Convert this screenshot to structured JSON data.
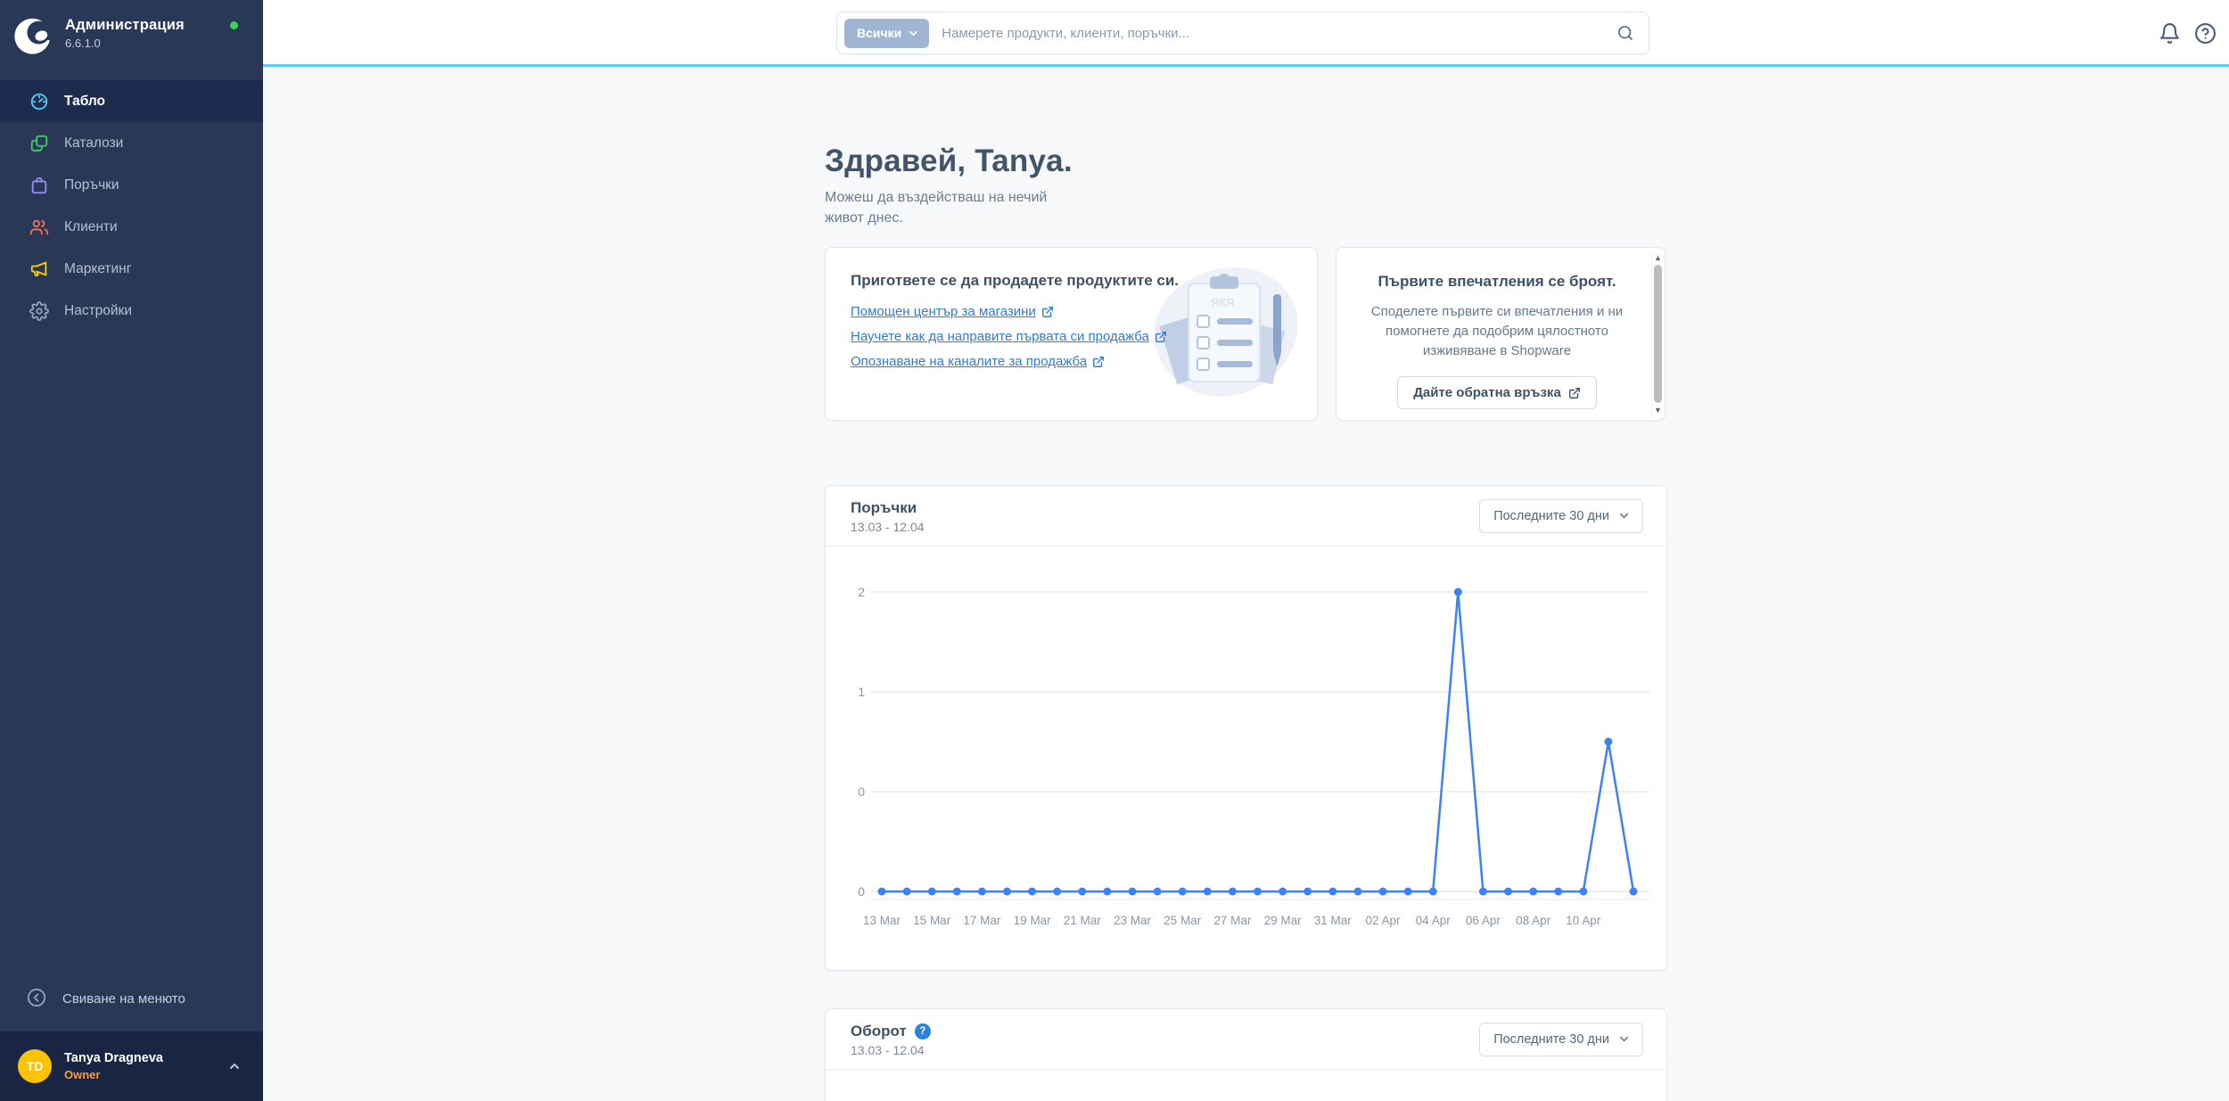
{
  "app": {
    "title": "Администрация",
    "version": "6.6.1.0"
  },
  "sidebar": {
    "items": [
      {
        "label": "Табло",
        "icon": "dashboard-icon",
        "color": "#55cdf2",
        "active": true
      },
      {
        "label": "Каталози",
        "icon": "catalogues-icon",
        "color": "#41d05f",
        "active": false
      },
      {
        "label": "Поръчки",
        "icon": "orders-bag-icon",
        "color": "#9b8df5",
        "active": false
      },
      {
        "label": "Клиенти",
        "icon": "customers-icon",
        "color": "#f4754d",
        "active": false
      },
      {
        "label": "Маркетинг",
        "icon": "marketing-icon",
        "color": "#ffd200",
        "active": false
      },
      {
        "label": "Настройки",
        "icon": "settings-icon",
        "color": "#97a3ba",
        "active": false
      }
    ],
    "collapse_label": "Свиване на менюто",
    "user": {
      "initials": "TD",
      "name": "Tanya Dragneva",
      "role": "Owner"
    }
  },
  "topbar": {
    "filter_label": "Всички",
    "search_placeholder": "Намерете продукти, клиенти, поръчки..."
  },
  "hero": {
    "title": "Здравей, Tanya.",
    "subtitle": "Можеш да въздействаш на нечий живот днес."
  },
  "cards": {
    "getting_started": {
      "title": "Пригответе се да продадете продуктите си.",
      "links": [
        {
          "text": "Помощен център за магазини"
        },
        {
          "text": "Научете как да направите първата си продажба"
        },
        {
          "text": "Опознаване на каналите за продажба"
        }
      ]
    },
    "feedback": {
      "title": "Първите впечатления се броят.",
      "body": "Споделете първите си впечатления и ни помогнете да подобрим цялостното изживяване в Shopware",
      "button_label": "Дайте обратна връзка"
    }
  },
  "orders_card": {
    "title": "Поръчки",
    "range": "13.03 - 12.04",
    "filter_label": "Последните 30 дни"
  },
  "turnover_card": {
    "title": "Оборот",
    "range": "13.03 - 12.04",
    "filter_label": "Последните 30 дни"
  },
  "chart_data": {
    "type": "line",
    "title": "Поръчки",
    "x": [
      "13 Mar",
      "14 Mar",
      "15 Mar",
      "16 Mar",
      "17 Mar",
      "18 Mar",
      "19 Mar",
      "20 Mar",
      "21 Mar",
      "22 Mar",
      "23 Mar",
      "24 Mar",
      "25 Mar",
      "26 Mar",
      "27 Mar",
      "28 Mar",
      "29 Mar",
      "30 Mar",
      "31 Mar",
      "01 Apr",
      "02 Apr",
      "03 Apr",
      "04 Apr",
      "05 Apr",
      "06 Apr",
      "07 Apr",
      "08 Apr",
      "09 Apr",
      "10 Apr",
      "11 Apr",
      "12 Apr"
    ],
    "values": [
      0,
      0,
      0,
      0,
      0,
      0,
      0,
      0,
      0,
      0,
      0,
      0,
      0,
      0,
      0,
      0,
      0,
      0,
      0,
      0,
      0,
      0,
      0,
      2,
      0,
      0,
      0,
      0,
      0,
      1,
      0
    ],
    "shown_x_labels": [
      "13 Mar",
      "15 Mar",
      "17 Mar",
      "19 Mar",
      "21 Mar",
      "23 Mar",
      "25 Mar",
      "27 Mar",
      "29 Mar",
      "31 Mar",
      "02 Apr",
      "04 Apr",
      "06 Apr",
      "08 Apr",
      "10 Apr"
    ],
    "ytick_labels": [
      "2",
      "1",
      "0",
      "0"
    ],
    "ylim": [
      0,
      2
    ],
    "grid": true,
    "legend": "none",
    "line_color": "#3b82f6",
    "grid_color": "#ececf0",
    "axis_label_color": "#8a96a8"
  },
  "colors": {
    "accent_line": "#63c9e8",
    "link": "#2d7dd2",
    "chart_line": "#3b82f6",
    "avatar_bg": "#fdc300",
    "role_text": "#f79b33",
    "status_dot": "#3fd15c",
    "sidebar_bg": "#293857",
    "sidebar_active_bg": "#1d2b4e",
    "user_footer_bg": "#1a2544"
  }
}
